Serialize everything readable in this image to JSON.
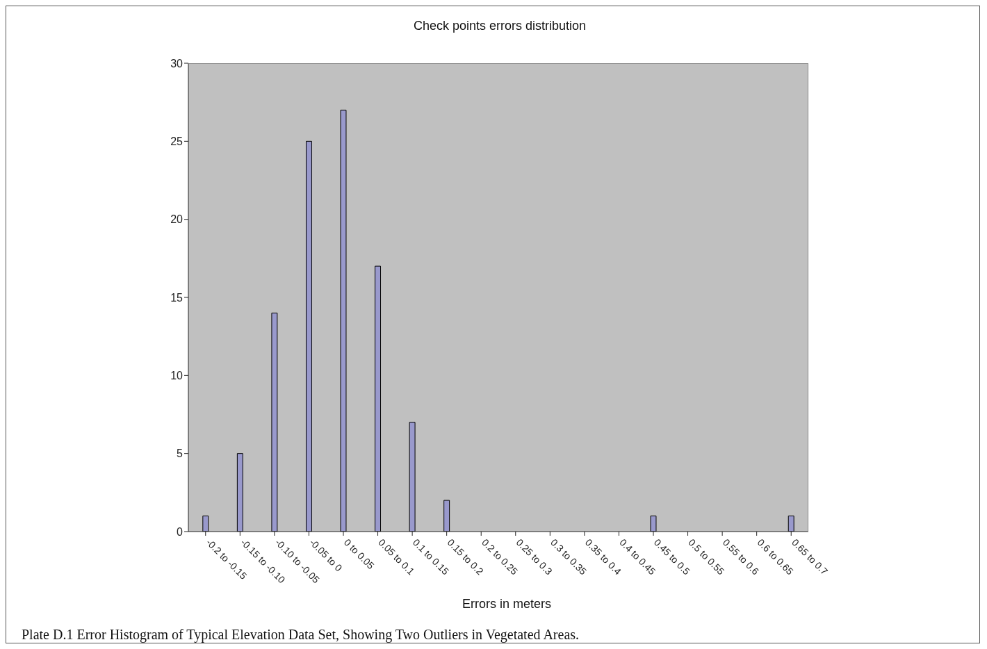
{
  "chart_data": {
    "type": "bar",
    "title": "Check points errors distribution",
    "xlabel": "Errors in meters",
    "categories": [
      "-0.2 to -0.15",
      "-0.15 to -0.10",
      "-0.10 to -0.05",
      "-0.05 to 0",
      "0 to 0.05",
      "0.05 to 0.1",
      "0.1 to 0.15",
      "0.15 to 0.2",
      "0.2 to 0.25",
      "0.25 to 0.3",
      "0.3 to 0.35",
      "0.35 to 0.4",
      "0.4 to 0.45",
      "0.45 to 0.5",
      "0.5 to 0.55",
      "0.55 to 0.6",
      "0.6 to 0.65",
      "0.65 to 0.7"
    ],
    "values": [
      1,
      5,
      14,
      25,
      27,
      17,
      7,
      2,
      0,
      0,
      0,
      0,
      0,
      1,
      0,
      0,
      0,
      1
    ],
    "color": "#9999cc",
    "ylim": [
      0,
      30
    ],
    "yticks": [
      0,
      5,
      10,
      15,
      20,
      25,
      30
    ],
    "legend": false,
    "annotations": [
      "Plate D.1 Error Histogram of Typical Elevation Data Set, Showing Two Outliers in Vegetated Areas."
    ]
  }
}
